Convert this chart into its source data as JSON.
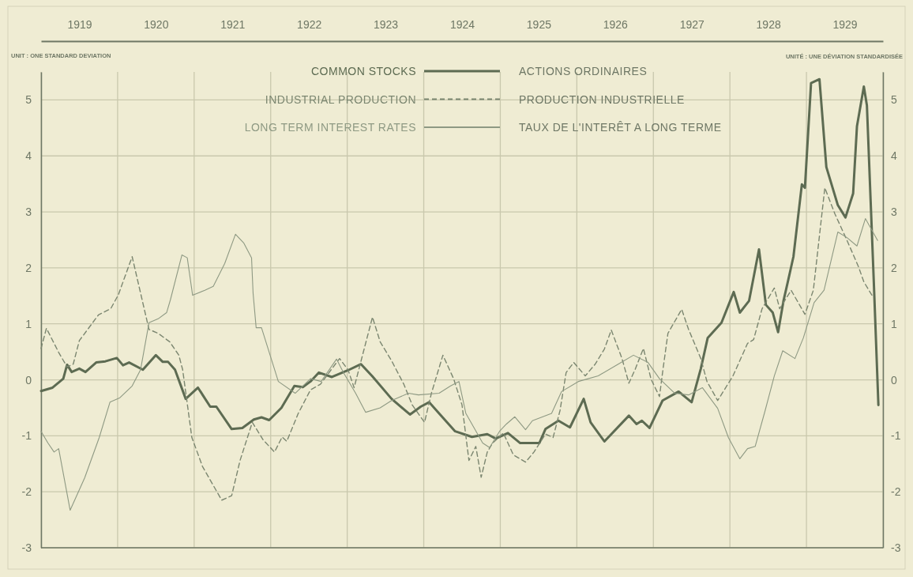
{
  "chart_data": {
    "type": "line",
    "xlim": [
      1919,
      1930
    ],
    "xticks": [
      {
        "value": 1919,
        "label": null
      },
      {
        "value": 1919.5,
        "label": "1919"
      },
      {
        "value": 1920,
        "label": null
      },
      {
        "value": 1920.5,
        "label": "1920"
      },
      {
        "value": 1921,
        "label": null
      },
      {
        "value": 1921.5,
        "label": "1921"
      },
      {
        "value": 1922,
        "label": null
      },
      {
        "value": 1922.5,
        "label": "1922"
      },
      {
        "value": 1923,
        "label": null
      },
      {
        "value": 1923.5,
        "label": "1923"
      },
      {
        "value": 1924,
        "label": null
      },
      {
        "value": 1924.5,
        "label": "1924"
      },
      {
        "value": 1925,
        "label": null
      },
      {
        "value": 1925.5,
        "label": "1925"
      },
      {
        "value": 1926,
        "label": null
      },
      {
        "value": 1926.5,
        "label": "1926"
      },
      {
        "value": 1927,
        "label": null
      },
      {
        "value": 1927.5,
        "label": "1927"
      },
      {
        "value": 1928,
        "label": null
      },
      {
        "value": 1928.5,
        "label": "1928"
      },
      {
        "value": 1929,
        "label": null
      },
      {
        "value": 1929.5,
        "label": "1929"
      },
      {
        "value": 1930,
        "label": null
      }
    ],
    "ylim": [
      -3,
      5.5
    ],
    "yticks": [
      -3,
      -2,
      -1,
      0,
      1,
      2,
      3,
      4,
      5
    ],
    "y2lim": [
      -3,
      5.5
    ],
    "y2ticks": [
      -3,
      -2,
      -1,
      0,
      1,
      2,
      3,
      4,
      5
    ],
    "grid": true,
    "legend": "top",
    "annotations": [
      "UNIT : ONE STANDARD DEVIATION",
      "UNITÉ : UNE DÉVIATION STANDARDISÉE",
      "ACTIONS ORDINAIRES",
      "PRODUCTION INDUSTRIELLE",
      "TAUX DE L'INTERÊT A LONG TERME"
    ],
    "series": [
      {
        "name": "COMMON STOCKS",
        "color": "#5d6b52",
        "line_style": "solid",
        "x": [
          1919.0,
          1919.15,
          1919.29,
          1919.34,
          1919.4,
          1919.5,
          1919.58,
          1919.72,
          1919.84,
          1919.99,
          1920.07,
          1920.15,
          1920.33,
          1920.5,
          1920.59,
          1920.66,
          1920.75,
          1920.89,
          1921.05,
          1921.21,
          1921.29,
          1921.49,
          1921.63,
          1921.78,
          1921.88,
          1921.98,
          1922.14,
          1922.31,
          1922.42,
          1922.52,
          1922.63,
          1922.8,
          1923.01,
          1923.18,
          1923.33,
          1923.58,
          1923.82,
          1923.96,
          1924.07,
          1924.2,
          1924.41,
          1924.63,
          1924.83,
          1924.94,
          1925.1,
          1925.26,
          1925.51,
          1925.59,
          1925.76,
          1925.91,
          1926.09,
          1926.18,
          1926.36,
          1926.68,
          1926.78,
          1926.85,
          1926.95,
          1927.12,
          1927.33,
          1927.5,
          1927.62,
          1927.71,
          1927.89,
          1928.05,
          1928.13,
          1928.25,
          1928.38,
          1928.47,
          1928.56,
          1928.63,
          1928.7,
          1928.76,
          1928.83,
          1928.94,
          1928.98,
          1929.06,
          1929.17,
          1929.26,
          1929.41,
          1929.51,
          1929.61,
          1929.66,
          1929.75,
          1929.79,
          1929.88,
          1929.94
        ],
        "values": [
          -0.2,
          -0.14,
          0.02,
          0.27,
          0.14,
          0.2,
          0.14,
          0.31,
          0.33,
          0.39,
          0.26,
          0.31,
          0.18,
          0.44,
          0.32,
          0.32,
          0.18,
          -0.34,
          -0.14,
          -0.48,
          -0.48,
          -0.88,
          -0.86,
          -0.71,
          -0.67,
          -0.72,
          -0.5,
          -0.11,
          -0.13,
          -0.03,
          0.13,
          0.05,
          0.17,
          0.28,
          0.06,
          -0.34,
          -0.62,
          -0.48,
          -0.4,
          -0.6,
          -0.92,
          -1.02,
          -0.97,
          -1.05,
          -0.95,
          -1.13,
          -1.13,
          -0.88,
          -0.73,
          -0.85,
          -0.34,
          -0.76,
          -1.1,
          -0.64,
          -0.79,
          -0.73,
          -0.86,
          -0.37,
          -0.21,
          -0.4,
          0.2,
          0.75,
          1.02,
          1.57,
          1.2,
          1.41,
          2.33,
          1.34,
          1.2,
          0.85,
          1.41,
          1.77,
          2.2,
          3.49,
          3.43,
          5.3,
          5.37,
          3.8,
          3.12,
          2.9,
          3.33,
          4.53,
          5.24,
          4.9,
          1.75,
          -0.45
        ]
      },
      {
        "name": "INDUSTRIAL PRODUCTION",
        "color": "#7b8670",
        "line_style": "dashed",
        "x": [
          1919.0,
          1919.07,
          1919.23,
          1919.34,
          1919.42,
          1919.5,
          1919.75,
          1919.91,
          1920.01,
          1920.19,
          1920.41,
          1920.53,
          1920.68,
          1920.8,
          1920.85,
          1920.97,
          1921.11,
          1921.36,
          1921.49,
          1921.6,
          1921.76,
          1921.9,
          1922.05,
          1922.15,
          1922.21,
          1922.36,
          1922.52,
          1922.65,
          1922.79,
          1922.9,
          1923.01,
          1923.09,
          1923.2,
          1923.33,
          1923.43,
          1923.58,
          1923.74,
          1923.85,
          1924.01,
          1924.1,
          1924.25,
          1924.39,
          1924.5,
          1924.59,
          1924.68,
          1924.75,
          1924.83,
          1924.9,
          1925.04,
          1925.17,
          1925.33,
          1925.44,
          1925.59,
          1925.69,
          1925.78,
          1925.86,
          1925.96,
          1926.11,
          1926.24,
          1926.36,
          1926.45,
          1926.59,
          1926.68,
          1926.76,
          1926.87,
          1926.97,
          1927.08,
          1927.12,
          1927.19,
          1927.37,
          1927.46,
          1927.62,
          1927.7,
          1927.84,
          1928.04,
          1928.23,
          1928.31,
          1928.42,
          1928.58,
          1928.65,
          1928.8,
          1928.98,
          1929.09,
          1929.24,
          1929.37,
          1929.53,
          1929.68,
          1929.75,
          1929.86
        ],
        "values": [
          0.56,
          0.92,
          0.49,
          0.23,
          0.28,
          0.7,
          1.16,
          1.27,
          1.52,
          2.2,
          0.9,
          0.83,
          0.68,
          0.44,
          0.18,
          -1.03,
          -1.55,
          -2.15,
          -2.07,
          -1.44,
          -0.76,
          -1.07,
          -1.29,
          -1.02,
          -1.1,
          -0.6,
          -0.18,
          -0.08,
          0.18,
          0.38,
          0.18,
          -0.14,
          0.44,
          1.12,
          0.68,
          0.34,
          -0.08,
          -0.45,
          -0.76,
          -0.24,
          0.44,
          0.02,
          -0.45,
          -1.44,
          -1.19,
          -1.74,
          -1.29,
          -1.13,
          -0.95,
          -1.34,
          -1.47,
          -1.29,
          -0.97,
          -1.03,
          -0.55,
          0.13,
          0.31,
          0.07,
          0.28,
          0.55,
          0.89,
          0.38,
          -0.06,
          0.18,
          0.56,
          0.01,
          -0.3,
          0.13,
          0.83,
          1.26,
          0.9,
          0.38,
          -0.03,
          -0.37,
          0.07,
          0.65,
          0.72,
          1.27,
          1.64,
          1.27,
          1.6,
          1.17,
          1.6,
          3.43,
          2.97,
          2.49,
          2.02,
          1.75,
          1.5
        ]
      },
      {
        "name": "LONG TERM INTEREST RATES",
        "color": "#8e9983",
        "line_style": "solid",
        "x": [
          1919.0,
          1919.09,
          1919.17,
          1919.23,
          1919.38,
          1919.57,
          1919.76,
          1919.9,
          1920.03,
          1920.19,
          1920.3,
          1920.41,
          1920.53,
          1920.64,
          1920.69,
          1920.84,
          1920.91,
          1920.98,
          1921.14,
          1921.25,
          1921.4,
          1921.54,
          1921.65,
          1921.75,
          1921.77,
          1921.81,
          1921.88,
          1922.1,
          1922.32,
          1922.52,
          1922.66,
          1922.86,
          1922.95,
          1923.11,
          1923.24,
          1923.43,
          1923.58,
          1923.8,
          1923.93,
          1924.2,
          1924.35,
          1924.46,
          1924.55,
          1924.77,
          1924.86,
          1924.99,
          1925.08,
          1925.19,
          1925.33,
          1925.42,
          1925.67,
          1925.8,
          1926.02,
          1926.28,
          1926.54,
          1926.74,
          1926.93,
          1927.08,
          1927.28,
          1927.46,
          1927.64,
          1927.84,
          1927.98,
          1928.13,
          1928.23,
          1928.33,
          1928.46,
          1928.58,
          1928.69,
          1928.85,
          1928.96,
          1929.1,
          1929.23,
          1929.41,
          1929.53,
          1929.66,
          1929.77,
          1929.93
        ],
        "values": [
          -0.92,
          -1.13,
          -1.29,
          -1.23,
          -2.33,
          -1.75,
          -1.03,
          -0.4,
          -0.32,
          -0.11,
          0.18,
          1.02,
          1.09,
          1.2,
          1.43,
          2.23,
          2.18,
          1.51,
          1.6,
          1.67,
          2.08,
          2.6,
          2.44,
          2.18,
          1.55,
          0.93,
          0.93,
          -0.03,
          -0.24,
          0.02,
          -0.03,
          0.37,
          0.13,
          -0.24,
          -0.58,
          -0.5,
          -0.37,
          -0.24,
          -0.27,
          -0.24,
          -0.11,
          -0.03,
          -0.6,
          -1.13,
          -1.21,
          -0.92,
          -0.79,
          -0.66,
          -0.89,
          -0.73,
          -0.6,
          -0.21,
          -0.03,
          0.07,
          0.28,
          0.44,
          0.31,
          0.02,
          -0.24,
          -0.27,
          -0.14,
          -0.51,
          -1.03,
          -1.41,
          -1.23,
          -1.19,
          -0.55,
          0.07,
          0.52,
          0.38,
          0.75,
          1.38,
          1.6,
          2.64,
          2.54,
          2.39,
          2.88,
          2.49
        ]
      }
    ]
  }
}
